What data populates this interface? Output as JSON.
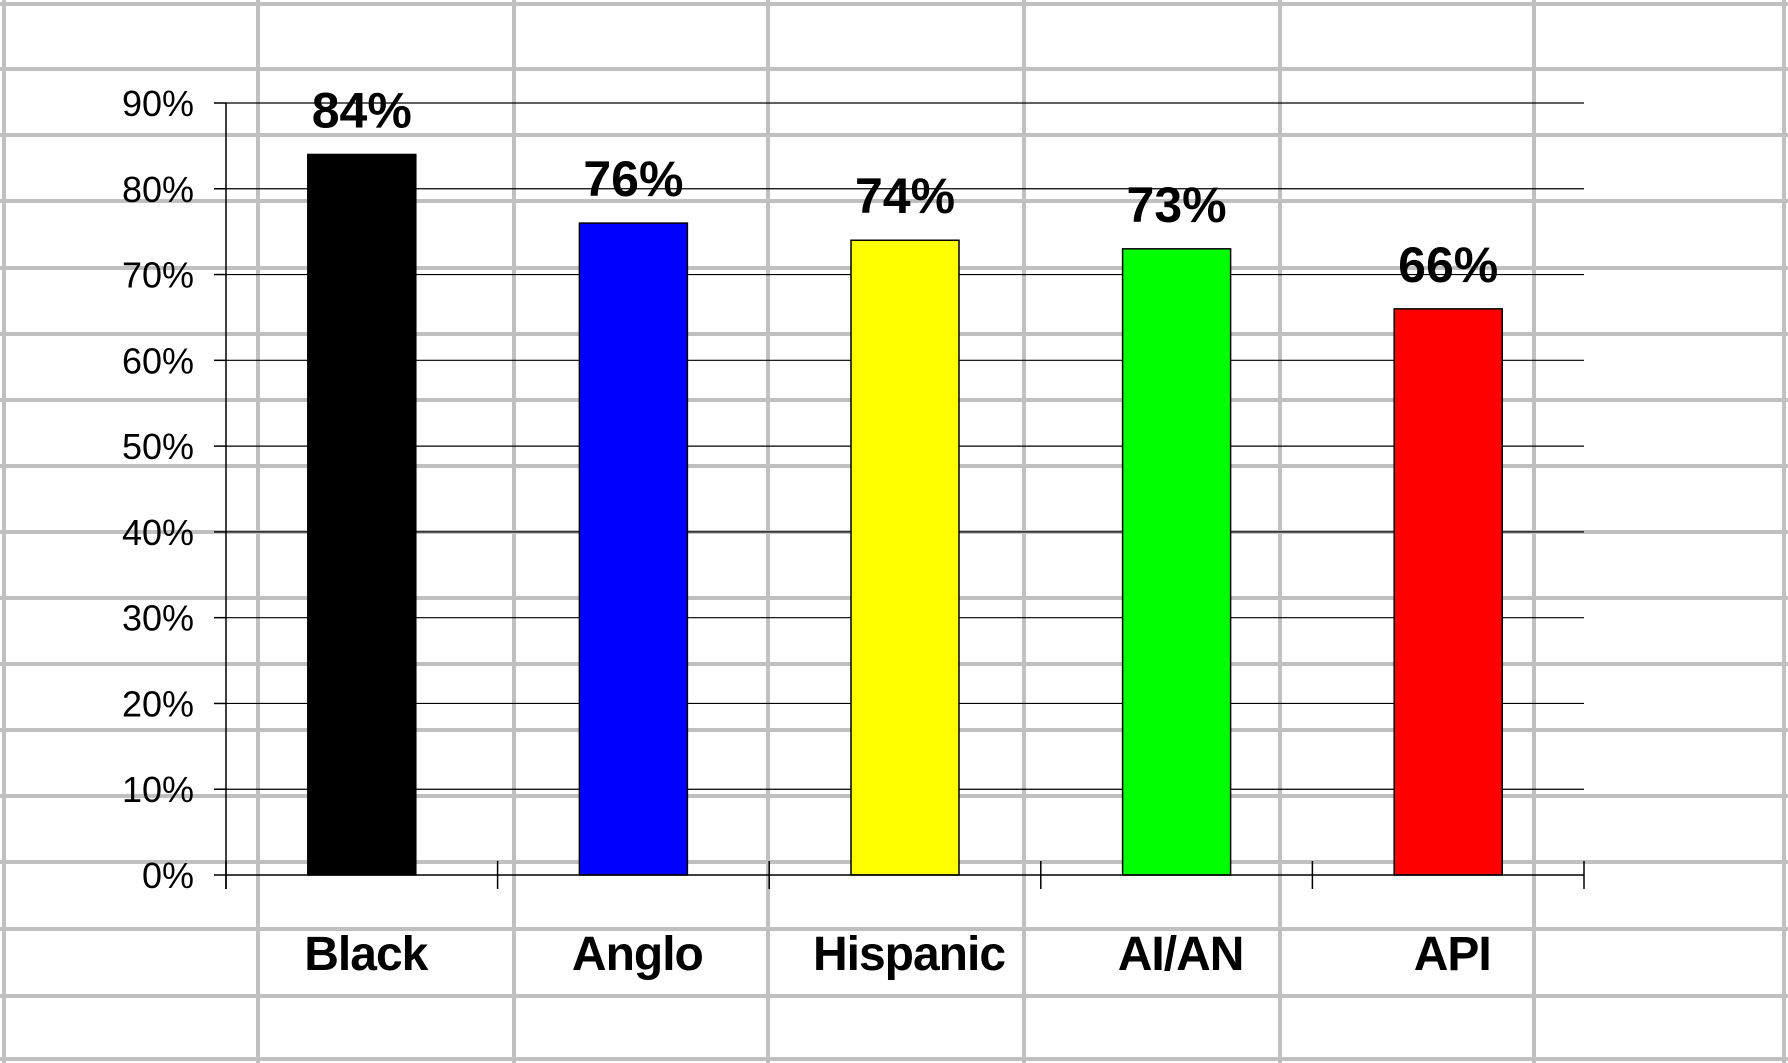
{
  "chart_data": {
    "type": "bar",
    "title": "",
    "xlabel": "",
    "ylabel": "",
    "categories": [
      "Black",
      "Anglo",
      "Hispanic",
      "AI/AN",
      "API"
    ],
    "values": [
      84,
      76,
      74,
      73,
      66
    ],
    "data_labels": [
      "84%",
      "76%",
      "74%",
      "73%",
      "66%"
    ],
    "bar_colors": [
      "#000000",
      "#0000ff",
      "#ffff00",
      "#00ff00",
      "#ff0000"
    ],
    "ylim": [
      0,
      90
    ],
    "yticks": [
      0,
      10,
      20,
      30,
      40,
      50,
      60,
      70,
      80,
      90
    ],
    "ytick_labels": [
      "0%",
      "10%",
      "20%",
      "30%",
      "40%",
      "50%",
      "60%",
      "70%",
      "80%",
      "90%"
    ],
    "grid": true,
    "legend": "none",
    "background_grid_color": "#c0c0c0",
    "gridline_color": "#000000"
  }
}
